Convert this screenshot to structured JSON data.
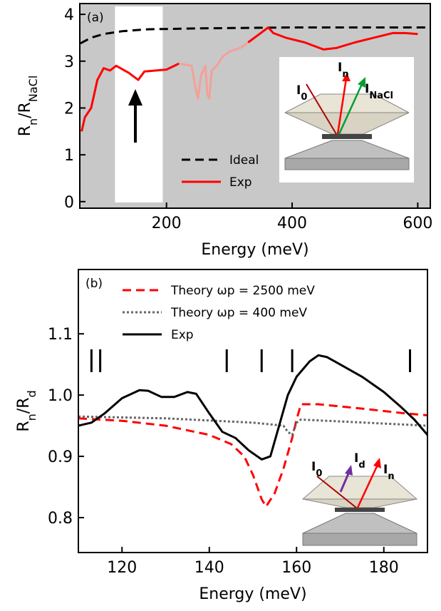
{
  "chart_data": [
    {
      "type": "line",
      "panel_label": "(a)",
      "xlabel": "Energy (meV)",
      "ylabel": [
        {
          "text": "R"
        },
        {
          "text": "n",
          "sub": true
        },
        {
          "text": "/R"
        },
        {
          "text": "NaCl",
          "sub": true
        }
      ],
      "xlim": [
        62,
        620
      ],
      "ylim": [
        -0.14,
        4.23
      ],
      "xticks": [
        200,
        400,
        600
      ],
      "yticks": [
        0,
        1,
        2,
        3,
        4
      ],
      "background": "#c8c8c8",
      "highlight": [
        118,
        194
      ],
      "series": [
        {
          "name": "Ideal",
          "color": "#000000",
          "dash": "dashed",
          "x": [
            63,
            80,
            100,
            130,
            170,
            250,
            400,
            620
          ],
          "values": [
            3.38,
            3.5,
            3.58,
            3.64,
            3.68,
            3.7,
            3.72,
            3.72
          ]
        },
        {
          "name": "Exp",
          "color": "#ff0000",
          "dash": "solid",
          "x": [
            65,
            70,
            80,
            90,
            100,
            110,
            120,
            140,
            155,
            165,
            200,
            220
          ],
          "values": [
            1.5,
            1.8,
            2.0,
            2.6,
            2.85,
            2.8,
            2.9,
            2.75,
            2.6,
            2.78,
            2.82,
            2.95
          ]
        },
        {
          "color": "#f4a09a",
          "dash": "solid",
          "x": [
            220,
            240,
            245,
            250,
            255,
            262,
            265,
            268,
            272,
            280,
            290,
            300,
            320,
            330
          ],
          "values": [
            2.95,
            2.9,
            2.5,
            2.2,
            2.7,
            2.9,
            2.3,
            2.2,
            2.8,
            2.9,
            3.1,
            3.2,
            3.3,
            3.4
          ]
        },
        {
          "color": "#ff0000",
          "dash": "solid",
          "x": [
            330,
            350,
            362,
            370,
            390,
            420,
            450,
            470,
            500,
            530,
            560,
            580,
            600
          ],
          "values": [
            3.4,
            3.6,
            3.72,
            3.6,
            3.5,
            3.4,
            3.25,
            3.28,
            3.4,
            3.5,
            3.6,
            3.6,
            3.58
          ]
        }
      ],
      "inset_labels": [
        {
          "text": "I",
          "sub": "0",
          "color": "#b00000"
        },
        {
          "text": "I",
          "sub": "n",
          "color": "#ff0000"
        },
        {
          "text": "I",
          "sub": "NaCl",
          "color": "#00a030"
        }
      ]
    },
    {
      "type": "line",
      "panel_label": "(b)",
      "xlabel": "Energy (meV)",
      "ylabel": [
        {
          "text": "R"
        },
        {
          "text": "n",
          "sub": true
        },
        {
          "text": "/R"
        },
        {
          "text": "d",
          "sub": true
        }
      ],
      "xlim": [
        110,
        190
      ],
      "ylim": [
        0.743,
        1.205
      ],
      "xticks": [
        120,
        140,
        160,
        180
      ],
      "yticks": [
        0.8,
        0.9,
        {
          "value": 1.0,
          "label": "1.0"
        },
        1.1
      ],
      "markers": [
        113,
        115,
        144,
        152,
        159,
        186
      ],
      "series": [
        {
          "name": "Theory ωp = 2500 meV",
          "color": "#ff0000",
          "dash": "dashed",
          "x": [
            110,
            120,
            130,
            140,
            145,
            148,
            150,
            152,
            153,
            155,
            157,
            159,
            160,
            161,
            165,
            175,
            185,
            190
          ],
          "values": [
            0.962,
            0.958,
            0.95,
            0.935,
            0.92,
            0.9,
            0.87,
            0.83,
            0.818,
            0.84,
            0.88,
            0.93,
            0.96,
            0.985,
            0.985,
            0.978,
            0.97,
            0.967
          ]
        },
        {
          "name": "Theory ωp = 400 meV",
          "color": "#666666",
          "dash": "dotted",
          "x": [
            110,
            130,
            150,
            157,
            158,
            159,
            160,
            161,
            170,
            190
          ],
          "values": [
            0.965,
            0.962,
            0.955,
            0.95,
            0.94,
            0.935,
            0.955,
            0.96,
            0.957,
            0.95
          ]
        },
        {
          "name": "Exp",
          "color": "#000000",
          "dash": "solid",
          "x": [
            110,
            113,
            116,
            120,
            124,
            126,
            129,
            132,
            135,
            137,
            140,
            143,
            146,
            149,
            152,
            154,
            156,
            158,
            160,
            163,
            165,
            167,
            170,
            175,
            180,
            184,
            187,
            190
          ],
          "values": [
            0.95,
            0.955,
            0.97,
            0.995,
            1.008,
            1.007,
            0.997,
            0.997,
            1.005,
            1.002,
            0.97,
            0.94,
            0.93,
            0.91,
            0.895,
            0.9,
            0.95,
            1.0,
            1.03,
            1.055,
            1.065,
            1.062,
            1.05,
            1.03,
            1.005,
            0.98,
            0.96,
            0.935
          ]
        }
      ],
      "inset_labels": [
        {
          "text": "I",
          "sub": "0",
          "color": "#b00000"
        },
        {
          "text": "I",
          "sub": "d",
          "color": "#7030a0"
        },
        {
          "text": "I",
          "sub": "n",
          "color": "#ff0000"
        }
      ]
    }
  ]
}
